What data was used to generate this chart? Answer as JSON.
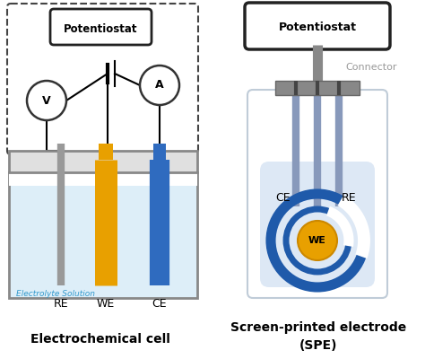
{
  "bg_color": "#ffffff",
  "left": {
    "pot_label": "Potentiostat",
    "elec_label": "Electrolyte Solution",
    "re_label": "RE",
    "we_label": "WE",
    "ce_label": "CE",
    "caption": "Electrochemical cell",
    "re_color": "#999999",
    "we_color": "#e8a000",
    "ce_color": "#2f6bbf",
    "liquid_color": "#ddeef8",
    "lid_color": "#d0d0d0",
    "cell_border": "#888888"
  },
  "right": {
    "pot_label": "Potentiostat",
    "connector_label": "Connector",
    "caption1": "Screen-printed electrode",
    "caption2": "(SPE)",
    "body_color": "#eef2f8",
    "body_border": "#c0ccd8",
    "wire_color": "#8899bb",
    "ce_color": "#1f5aaa",
    "we_color": "#e8a000",
    "bg_circle_color": "#dde8f5",
    "ce_label": "CE",
    "re_label": "RE",
    "we_label": "WE"
  }
}
